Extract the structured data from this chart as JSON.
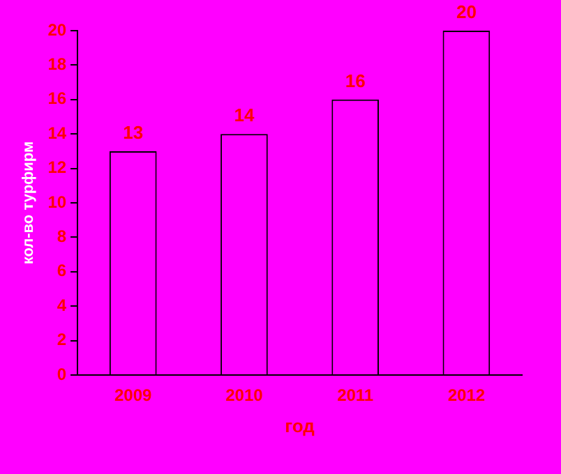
{
  "chart_data": {
    "type": "bar",
    "xlabel": "год",
    "ylabel": "кол-во турфирм",
    "categories": [
      "2009",
      "2010",
      "2011",
      "2012"
    ],
    "values": [
      13,
      14,
      16,
      20
    ],
    "color": "#ff00ff",
    "ylim": [
      0,
      20
    ],
    "yticks": [
      0,
      2,
      4,
      6,
      8,
      10,
      12,
      14,
      16,
      18,
      20
    ],
    "data_labels": true,
    "grid": false,
    "legend": false
  }
}
